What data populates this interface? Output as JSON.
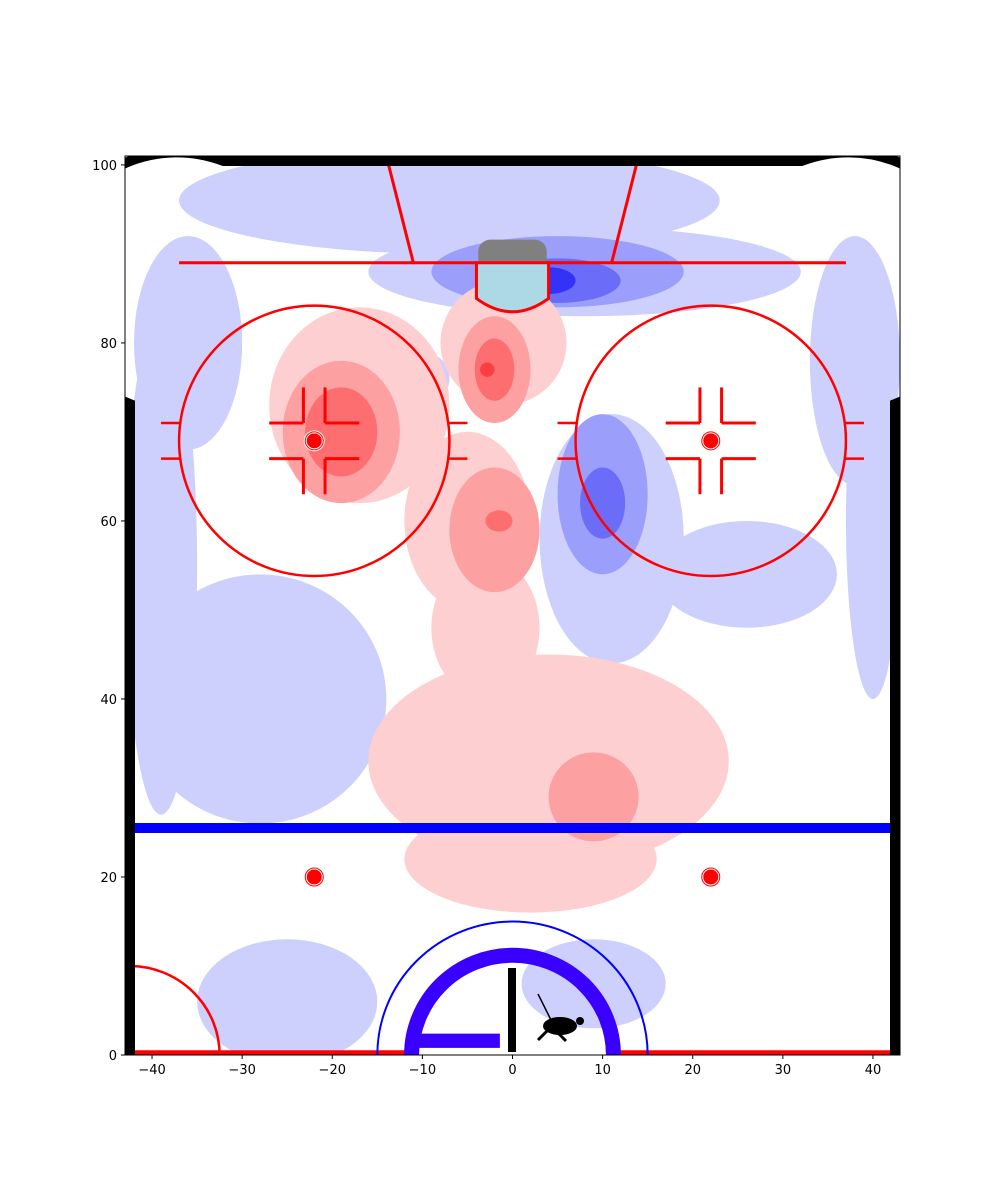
{
  "chart_data": {
    "type": "heatmap",
    "title": "",
    "xlabel": "",
    "ylabel": "",
    "xlim": [
      -43,
      43
    ],
    "ylim": [
      0,
      101
    ],
    "x_ticks": [
      -40,
      -30,
      -20,
      -10,
      0,
      10,
      20,
      30,
      40
    ],
    "x_tick_labels": [
      "−40",
      "−30",
      "−20",
      "−10",
      "0",
      "10",
      "20",
      "30",
      "40"
    ],
    "y_ticks": [
      0,
      20,
      40,
      60,
      80,
      100
    ],
    "y_tick_labels": [
      "0",
      "20",
      "40",
      "60",
      "80",
      "100"
    ],
    "grid": false,
    "colors": {
      "neg_levels": [
        "#cdd0fd",
        "#9c9efb",
        "#6b6cf8",
        "#3332f5"
      ],
      "pos_levels": [
        "#fecfd0",
        "#fda0a1",
        "#fd6e70",
        "#fc3e40"
      ],
      "rink_lines": "#ff0000",
      "blue_line": "#0000ff",
      "boards": "#000000",
      "crease": "#add8e6",
      "net": "#808080",
      "logo_arc": "#3a00ff"
    },
    "rink_features": {
      "goal_line_y": 89,
      "blue_line_y": 25.5,
      "faceoff_circles": [
        {
          "x": -22,
          "y": 69,
          "r": 15
        },
        {
          "x": 22,
          "y": 69,
          "r": 15
        }
      ],
      "faceoff_dots": [
        {
          "x": -22,
          "y": 69
        },
        {
          "x": 22,
          "y": 69
        },
        {
          "x": -22,
          "y": 20
        },
        {
          "x": 22,
          "y": 20
        }
      ],
      "center_circle": {
        "x": 0,
        "y": 0,
        "r": 15
      }
    },
    "blobs": [
      {
        "x": -7,
        "y": 96,
        "rx": 30,
        "ry": 6,
        "level": -1
      },
      {
        "x": 8,
        "y": 88,
        "rx": 24,
        "ry": 5,
        "level": -1
      },
      {
        "x": -36,
        "y": 80,
        "rx": 6,
        "ry": 12,
        "level": -1
      },
      {
        "x": 38,
        "y": 78,
        "rx": 5,
        "ry": 14,
        "level": -1
      },
      {
        "x": -39,
        "y": 55,
        "rx": 4,
        "ry": 28,
        "level": -1
      },
      {
        "x": -28,
        "y": 40,
        "rx": 14,
        "ry": 14,
        "level": -1
      },
      {
        "x": 40,
        "y": 60,
        "rx": 3,
        "ry": 20,
        "level": -1
      },
      {
        "x": 11,
        "y": 58,
        "rx": 8,
        "ry": 14,
        "level": -1
      },
      {
        "x": 26,
        "y": 54,
        "rx": 10,
        "ry": 6,
        "level": -1
      },
      {
        "x": -25,
        "y": 6,
        "rx": 10,
        "ry": 7,
        "level": -1
      },
      {
        "x": 9,
        "y": 8,
        "rx": 8,
        "ry": 5,
        "level": -1
      },
      {
        "x": -10,
        "y": 76,
        "rx": 3,
        "ry": 3,
        "level": -1
      },
      {
        "x": 5,
        "y": 88,
        "rx": 14,
        "ry": 4,
        "level": -2
      },
      {
        "x": 10,
        "y": 63,
        "rx": 5,
        "ry": 9,
        "level": -2
      },
      {
        "x": 5,
        "y": 87,
        "rx": 7,
        "ry": 2.5,
        "level": -3
      },
      {
        "x": 10,
        "y": 62,
        "rx": 2.5,
        "ry": 4,
        "level": -3
      },
      {
        "x": 4,
        "y": 87,
        "rx": 3,
        "ry": 1.5,
        "level": -4
      },
      {
        "x": -17,
        "y": 73,
        "rx": 10,
        "ry": 11,
        "level": 1
      },
      {
        "x": -1,
        "y": 80,
        "rx": 7,
        "ry": 7,
        "level": 1
      },
      {
        "x": -5,
        "y": 60,
        "rx": 7,
        "ry": 10,
        "level": 1
      },
      {
        "x": 4,
        "y": 33,
        "rx": 20,
        "ry": 12,
        "level": 1
      },
      {
        "x": 2,
        "y": 22,
        "rx": 14,
        "ry": 6,
        "level": 1
      },
      {
        "x": -3,
        "y": 48,
        "rx": 6,
        "ry": 8,
        "level": 1
      },
      {
        "x": -19,
        "y": 70,
        "rx": 6.5,
        "ry": 8,
        "level": 2
      },
      {
        "x": -2,
        "y": 77,
        "rx": 4,
        "ry": 6,
        "level": 2
      },
      {
        "x": -2,
        "y": 59,
        "rx": 5,
        "ry": 7,
        "level": 2
      },
      {
        "x": 9,
        "y": 29,
        "rx": 5,
        "ry": 5,
        "level": 2
      },
      {
        "x": -19,
        "y": 70,
        "rx": 4,
        "ry": 5,
        "level": 3
      },
      {
        "x": -2,
        "y": 77,
        "rx": 2.2,
        "ry": 3.5,
        "level": 3
      },
      {
        "x": -1.5,
        "y": 60,
        "rx": 1.5,
        "ry": 1.2,
        "level": 3
      },
      {
        "x": -2.8,
        "y": 77,
        "rx": 0.8,
        "ry": 0.8,
        "level": 4
      }
    ]
  }
}
